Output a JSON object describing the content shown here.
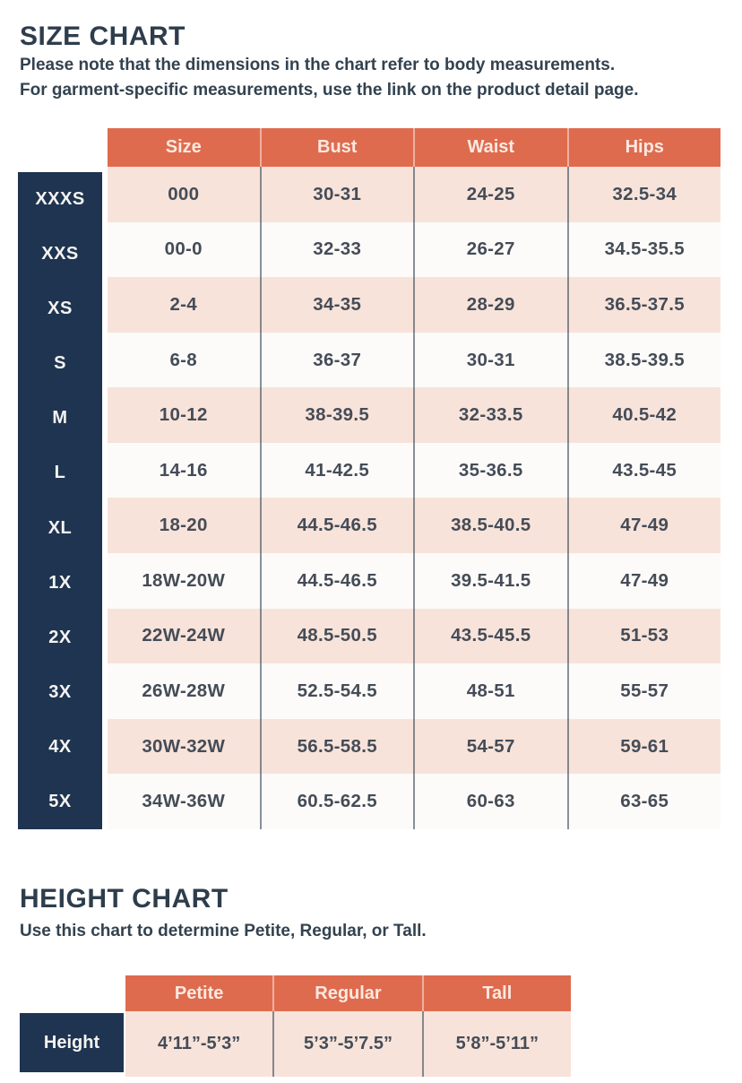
{
  "colors": {
    "accent_orange": "#df6b4e",
    "navy": "#1e3450",
    "row_pink": "#f7e3da",
    "row_white": "#fcfbf9",
    "header_text": "#fbe9e1",
    "body_text": "#454c57",
    "title_text": "#2e3d4c"
  },
  "size_chart": {
    "title": "SIZE CHART",
    "subtitle_line1": "Please note that the dimensions in the chart refer to body measurements.",
    "subtitle_line2": "For garment-specific measurements, use the link on the product detail page."
  },
  "height_chart": {
    "title": "HEIGHT CHART",
    "subtitle": "Use this chart to determine Petite, Regular, or Tall."
  },
  "chart_data": [
    {
      "type": "table",
      "title": "SIZE CHART",
      "columns": [
        "Size",
        "Bust",
        "Waist",
        "Hips"
      ],
      "row_labels": [
        "XXXS",
        "XXS",
        "XS",
        "S",
        "M",
        "L",
        "XL",
        "1X",
        "2X",
        "3X",
        "4X",
        "5X"
      ],
      "rows": [
        [
          "000",
          "30-31",
          "24-25",
          "32.5-34"
        ],
        [
          "00-0",
          "32-33",
          "26-27",
          "34.5-35.5"
        ],
        [
          "2-4",
          "34-35",
          "28-29",
          "36.5-37.5"
        ],
        [
          "6-8",
          "36-37",
          "30-31",
          "38.5-39.5"
        ],
        [
          "10-12",
          "38-39.5",
          "32-33.5",
          "40.5-42"
        ],
        [
          "14-16",
          "41-42.5",
          "35-36.5",
          "43.5-45"
        ],
        [
          "18-20",
          "44.5-46.5",
          "38.5-40.5",
          "47-49"
        ],
        [
          "18W-20W",
          "44.5-46.5",
          "39.5-41.5",
          "47-49"
        ],
        [
          "22W-24W",
          "48.5-50.5",
          "43.5-45.5",
          "51-53"
        ],
        [
          "26W-28W",
          "52.5-54.5",
          "48-51",
          "55-57"
        ],
        [
          "30W-32W",
          "56.5-58.5",
          "54-57",
          "59-61"
        ],
        [
          "34W-36W",
          "60.5-62.5",
          "60-63",
          "63-65"
        ]
      ]
    },
    {
      "type": "table",
      "title": "HEIGHT CHART",
      "columns": [
        "Petite",
        "Regular",
        "Tall"
      ],
      "row_labels": [
        "Height"
      ],
      "rows": [
        [
          "4’11”-5’3”",
          "5’3”-5’7.5”",
          "5’8”-5’11”"
        ]
      ]
    }
  ]
}
